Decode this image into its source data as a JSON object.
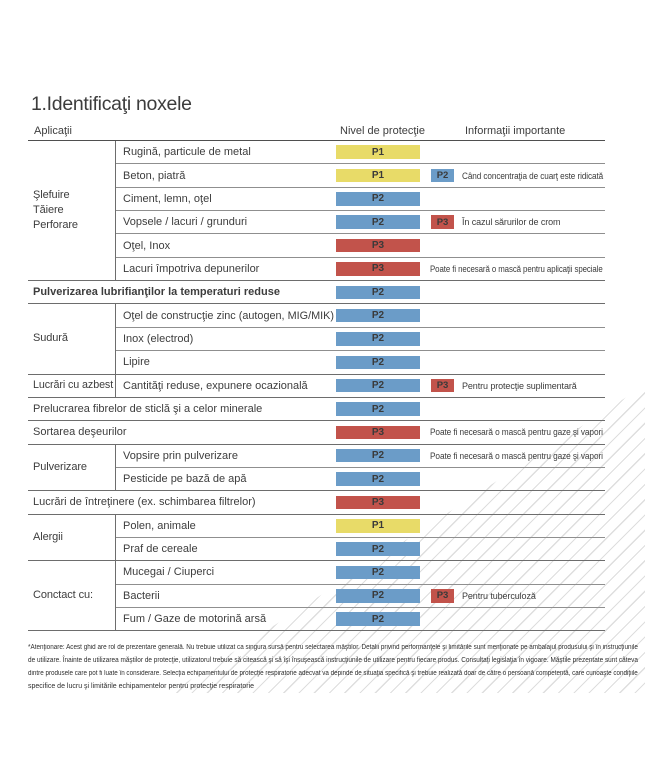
{
  "page": {
    "title": "1.Identificaţi noxele",
    "columns": {
      "applications": "Aplicaţii",
      "protection": "Nivel de protecţie",
      "info": "Informaţii importante"
    },
    "footnote_lines": [
      "*Atenţionare: Acest ghid are rol de prezentare generală. Nu trebuie utilizat ca singura sursă pentru selectarea măştilor. Detalii privind performanţele şi limitările sunt menţionate pe ambalajul produsului şi în instrucţiunile",
      "de utilizare. Înainte de utilizarea măştilor de protecţie, utilizatorul trebuie să citească şi să îşi însuşească instrucţiunile de utilizare pentru fiecare produs. Consultaţi legislaţia în vigoare. Măştile prezentate sunt câteva",
      "dintre produsele care pot fi luate în considerare. Selecţia echipamentului de protecţie respiratorie adecvat va depinde de situaţia specifică şi trebuie realizată doar de către o persoană competentă, care cunoaşte condiţiile",
      "specifice de lucru şi limitările echipamentelor pentru protecţie respiratorie"
    ]
  },
  "badge_colors": {
    "P1": "#e8db68",
    "P2": "#6b9cc8",
    "P3": "#c2534b"
  },
  "groups": [
    {
      "label_lines": [
        "Şlefuire",
        "Tăiere",
        "Perforare"
      ],
      "start": 0,
      "end": 5
    },
    {
      "label_lines": [
        "Sudură"
      ],
      "start": 7,
      "end": 9
    },
    {
      "label_lines": [
        "Lucrări cu azbest"
      ],
      "start": 10,
      "end": 10
    },
    {
      "label_lines": [
        "Pulverizare"
      ],
      "start": 13,
      "end": 14
    },
    {
      "label_lines": [
        "Alergii"
      ],
      "start": 16,
      "end": 17
    },
    {
      "label_lines": [
        "Conctact cu:"
      ],
      "start": 18,
      "end": 20
    }
  ],
  "rows": [
    {
      "label": "Rugină, particule de metal",
      "full": false,
      "bold": false,
      "badge": "P1",
      "badge2": "",
      "info": ""
    },
    {
      "label": "Beton, piatră",
      "full": false,
      "bold": false,
      "badge": "P1",
      "badge2": "P2",
      "info": "Când concentraţia de cuarţ este ridicată"
    },
    {
      "label": "Ciment, lemn, oţel",
      "full": false,
      "bold": false,
      "badge": "P2",
      "badge2": "",
      "info": ""
    },
    {
      "label": "Vopsele / lacuri / grunduri",
      "full": false,
      "bold": false,
      "badge": "P2",
      "badge2": "P3",
      "info": "În cazul sărurilor de crom"
    },
    {
      "label": "Oţel, Inox",
      "full": false,
      "bold": false,
      "badge": "P3",
      "badge2": "",
      "info": ""
    },
    {
      "label": "Lacuri împotriva depunerilor",
      "full": false,
      "bold": false,
      "badge": "P3",
      "badge2": "",
      "info": "Poate fi necesară o mască pentru aplicaţii speciale"
    },
    {
      "label": "Pulverizarea lubrifianţilor la temperaturi reduse",
      "full": true,
      "bold": true,
      "badge": "P2",
      "badge2": "",
      "info": ""
    },
    {
      "label": "Oţel de construcţie zinc (autogen, MIG/MIK)",
      "full": false,
      "bold": false,
      "badge": "P2",
      "badge2": "",
      "info": ""
    },
    {
      "label": "Inox (electrod)",
      "full": false,
      "bold": false,
      "badge": "P2",
      "badge2": "",
      "info": ""
    },
    {
      "label": "Lipire",
      "full": false,
      "bold": false,
      "badge": "P2",
      "badge2": "",
      "info": ""
    },
    {
      "label": "Cantităţi reduse, expunere ocazională",
      "full": false,
      "bold": false,
      "badge": "P2",
      "badge2": "P3",
      "info": "Pentru protecţie suplimentară"
    },
    {
      "label": "Prelucrarea fibrelor de sticlă şi a celor minerale",
      "full": true,
      "bold": false,
      "badge": "P2",
      "badge2": "",
      "info": ""
    },
    {
      "label": "Sortarea deşeurilor",
      "full": true,
      "bold": false,
      "badge": "P3",
      "badge2": "",
      "info": "Poate fi necesară o mască pentru gaze şi vapori"
    },
    {
      "label": "Vopsire prin pulverizare",
      "full": false,
      "bold": false,
      "badge": "P2",
      "badge2": "",
      "info": "Poate fi necesară o mască pentru gaze şi vapori"
    },
    {
      "label": "Pesticide pe bază de apă",
      "full": false,
      "bold": false,
      "badge": "P2",
      "badge2": "",
      "info": ""
    },
    {
      "label": "Lucrări de întreţinere (ex. schimbarea filtrelor)",
      "full": true,
      "bold": false,
      "badge": "P3",
      "badge2": "",
      "info": ""
    },
    {
      "label": "Polen, animale",
      "full": false,
      "bold": false,
      "badge": "P1",
      "badge2": "",
      "info": ""
    },
    {
      "label": "Praf de cereale",
      "full": false,
      "bold": false,
      "badge": "P2",
      "badge2": "",
      "info": ""
    },
    {
      "label": "Mucegai / Ciuperci",
      "full": false,
      "bold": false,
      "badge": "P2",
      "badge2": "",
      "info": ""
    },
    {
      "label": "Bacterii",
      "full": false,
      "bold": false,
      "badge": "P2",
      "badge2": "P3",
      "info": "Pentru tuberculoză"
    },
    {
      "label": "Fum / Gaze de motorină arsă",
      "full": false,
      "bold": false,
      "badge": "P2",
      "badge2": "",
      "info": ""
    }
  ]
}
